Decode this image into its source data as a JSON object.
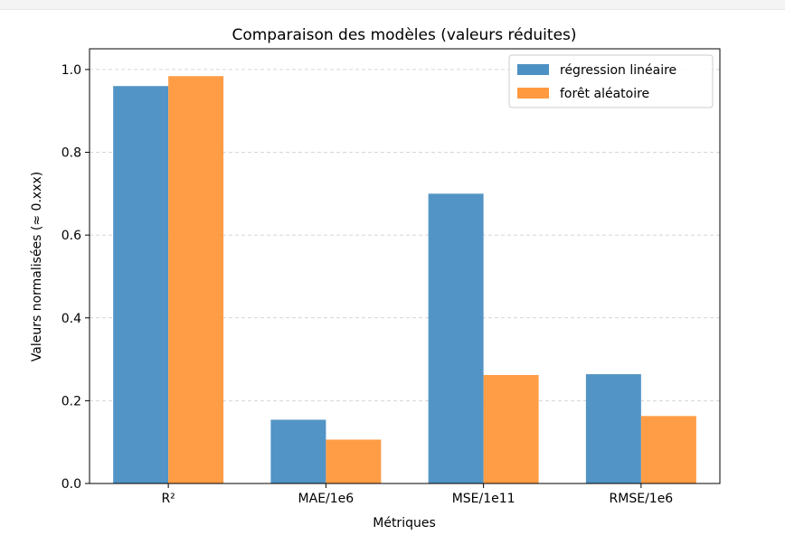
{
  "chart_data": {
    "type": "bar",
    "title": "Comparaison des modèles (valeurs réduites)",
    "xlabel": "Métriques",
    "ylabel": "Valeurs normalisées (≈ 0.xxx)",
    "categories": [
      "R²",
      "MAE/1e6",
      "MSE/1e11",
      "RMSE/1e6"
    ],
    "series": [
      {
        "name": "régression linéaire",
        "color": "#4c91c3",
        "values": [
          0.96,
          0.154,
          0.7,
          0.264
        ]
      },
      {
        "name": "forêt aléatoire",
        "color": "#ff9a40",
        "values": [
          0.984,
          0.106,
          0.262,
          0.163
        ]
      }
    ],
    "ylim": [
      0.0,
      1.05
    ],
    "yticks": [
      "0.0",
      "0.2",
      "0.4",
      "0.6",
      "0.8",
      "1.0"
    ],
    "grid": "y-dashed",
    "legend": "top-right"
  }
}
